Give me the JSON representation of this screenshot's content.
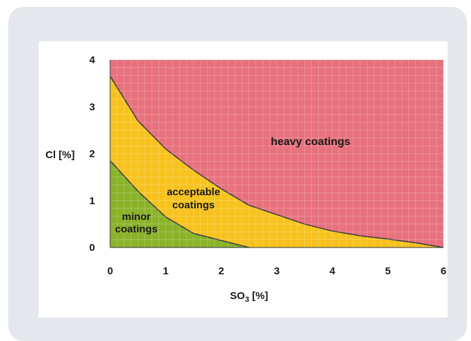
{
  "chart_data": {
    "type": "area",
    "xlabel": "SO",
    "xlabel_subscript": "3",
    "xlabel_unit": " [%]",
    "ylabel": "Cl [%]",
    "xlim": [
      0,
      6
    ],
    "ylim": [
      0,
      4
    ],
    "xticks": [
      "0",
      "1",
      "2",
      "3",
      "4",
      "5",
      "6"
    ],
    "yticks": [
      "0",
      "1",
      "2",
      "3",
      "4"
    ],
    "grid": true,
    "boundaries": [
      {
        "name": "minor/acceptable boundary",
        "x": [
          0,
          0.5,
          1.0,
          1.5,
          2.0,
          2.5
        ],
        "y": [
          1.85,
          1.2,
          0.65,
          0.3,
          0.15,
          0
        ]
      },
      {
        "name": "acceptable/heavy boundary",
        "x": [
          0,
          0.5,
          1.0,
          1.5,
          2.0,
          2.5,
          3.0,
          3.5,
          4.0,
          4.5,
          5.0,
          5.5,
          6.0
        ],
        "y": [
          3.65,
          2.7,
          2.1,
          1.65,
          1.25,
          0.9,
          0.7,
          0.5,
          0.35,
          0.25,
          0.18,
          0.1,
          0
        ]
      }
    ],
    "regions": [
      {
        "label_lines": [
          "minor",
          "coatings"
        ],
        "color": "#8bb32a"
      },
      {
        "label_lines": [
          "acceptable",
          "coatings"
        ],
        "color": "#f7c21e"
      },
      {
        "label_lines": [
          "heavy coatings"
        ],
        "color": "#e8717e"
      }
    ]
  }
}
